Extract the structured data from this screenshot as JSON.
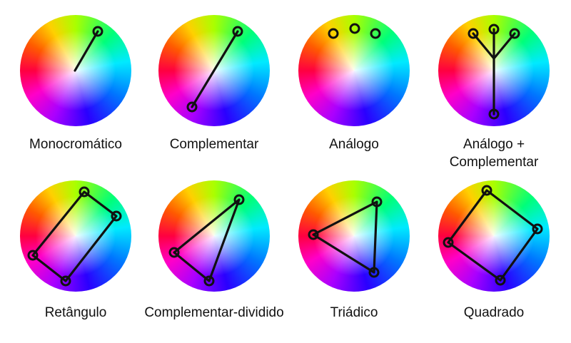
{
  "colors": {
    "line": "#111111",
    "background": "#ffffff"
  },
  "harmonies": [
    {
      "id": "monochromatic",
      "label": "Monocromático"
    },
    {
      "id": "complementary",
      "label": "Complementar"
    },
    {
      "id": "analogous",
      "label": "Análogo"
    },
    {
      "id": "analogous-complementary",
      "label": "Análogo +",
      "label_line2": "Complementar"
    },
    {
      "id": "rectangle",
      "label": "Retângulo"
    },
    {
      "id": "split-complementary",
      "label": "Complementar-dividido"
    },
    {
      "id": "triadic",
      "label": "Triádico"
    },
    {
      "id": "square",
      "label": "Quadrado"
    }
  ]
}
